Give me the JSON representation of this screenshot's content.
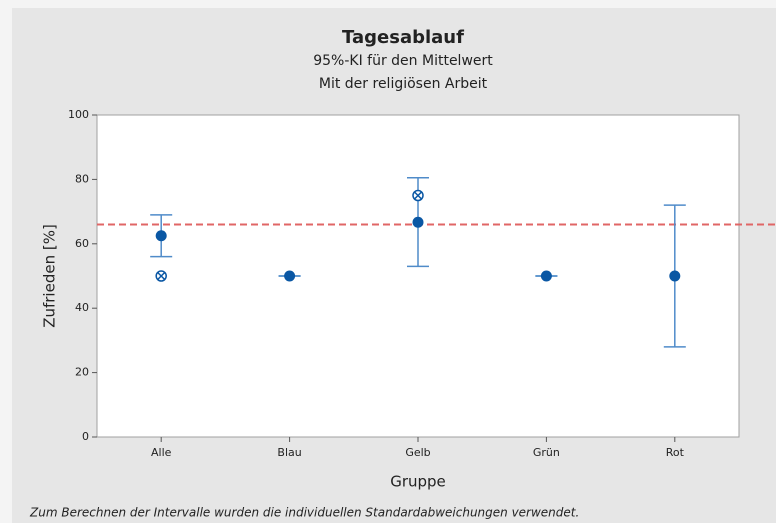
{
  "chart_data": {
    "type": "interval",
    "title": "Tagesablauf",
    "subtitle": "95%-KI für den Mittelwert",
    "subtitle2": "Mit der religiösen Arbeit",
    "x_label": "Gruppe",
    "y_label": "Zufrieden [%]",
    "categories": [
      "Alle",
      "Blau",
      "Gelb",
      "Grün",
      "Rot"
    ],
    "values": [
      62.5,
      50,
      66.7,
      50,
      50
    ],
    "ci_lower": [
      56,
      50,
      53,
      50,
      28
    ],
    "ci_upper": [
      69,
      50,
      80.5,
      50,
      72
    ],
    "medians": [
      50,
      null,
      75,
      null,
      null
    ],
    "reference_line": 66,
    "ylim": [
      0,
      100
    ],
    "yticks": [
      0,
      20,
      40,
      60,
      80,
      100
    ],
    "color": "#0a57a4",
    "interval_color": "#4f8bc9",
    "reference_color": "#e06666",
    "note": "Zum Berechnen der Intervalle wurden die individuellen Standardabweichungen verwendet."
  }
}
